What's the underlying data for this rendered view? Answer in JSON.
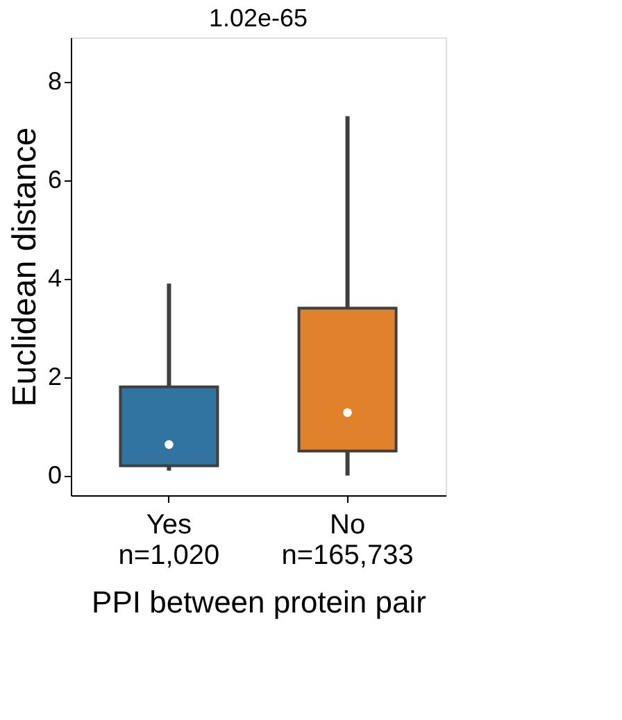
{
  "chart_data": {
    "type": "box",
    "xlabel": "PPI between protein pair",
    "ylabel": "Euclidean distance",
    "categories": [
      "Yes\nn=1,020",
      "No\nn=165,733"
    ],
    "colors": [
      "#3274a1",
      "#e1812c"
    ],
    "boxes": [
      {
        "low": 0.1,
        "q1": 0.2,
        "median": 0.63,
        "q3": 1.8,
        "high": 3.9
      },
      {
        "low": 0.0,
        "q1": 0.5,
        "median": 1.28,
        "q3": 3.4,
        "high": 7.3
      }
    ],
    "ylim": [
      -0.4,
      8.9
    ],
    "yticks": [
      0,
      2,
      4,
      6,
      8
    ],
    "annotations": [
      "1.02e-65"
    ],
    "grid": false
  }
}
